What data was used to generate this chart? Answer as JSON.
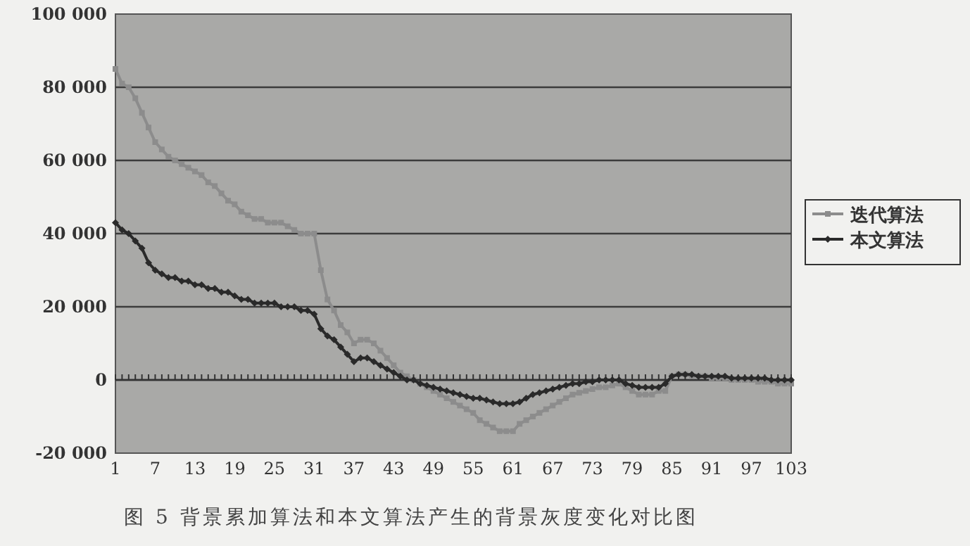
{
  "chart_data": {
    "type": "line",
    "title": "图 5 背景累加算法和本文算法产生的背景灰度变化对比图",
    "categories": [
      "1",
      null,
      null,
      null,
      null,
      null,
      "7",
      null,
      null,
      null,
      null,
      null,
      "13",
      null,
      null,
      null,
      null,
      null,
      "19",
      null,
      null,
      null,
      null,
      null,
      "25",
      null,
      null,
      null,
      null,
      null,
      "31",
      null,
      null,
      null,
      null,
      null,
      "37",
      null,
      null,
      null,
      null,
      null,
      "43",
      null,
      null,
      null,
      null,
      null,
      "49",
      null,
      null,
      null,
      null,
      null,
      "55",
      null,
      null,
      null,
      null,
      null,
      "61",
      null,
      null,
      null,
      null,
      null,
      "67",
      null,
      null,
      null,
      null,
      null,
      "73",
      null,
      null,
      null,
      null,
      null,
      "79",
      null,
      null,
      null,
      null,
      null,
      "85",
      null,
      null,
      null,
      null,
      null,
      "91",
      null,
      null,
      null,
      null,
      null,
      "97",
      null,
      null,
      null,
      null,
      null,
      "103"
    ],
    "series": [
      {
        "name": "迭代算法",
        "color": "#8c8c8c",
        "marker": "square",
        "values": [
          85000,
          81000,
          80000,
          77000,
          73000,
          69000,
          65000,
          63000,
          61000,
          60000,
          59000,
          58000,
          57000,
          56000,
          54000,
          53000,
          51000,
          49000,
          48000,
          46000,
          45000,
          44000,
          44000,
          43000,
          43000,
          43000,
          42000,
          41000,
          40000,
          40000,
          40000,
          30000,
          22000,
          19000,
          15000,
          13000,
          10000,
          11000,
          11000,
          10000,
          8000,
          6000,
          4000,
          2000,
          1000,
          0,
          -1000,
          -2000,
          -3000,
          -4000,
          -5000,
          -6000,
          -7000,
          -8000,
          -9000,
          -11000,
          -12000,
          -13000,
          -14000,
          -14000,
          -14000,
          -12000,
          -11000,
          -10000,
          -9000,
          -8000,
          -7000,
          -6000,
          -5000,
          -4000,
          -3500,
          -3000,
          -2500,
          -2000,
          -2000,
          -1500,
          -1000,
          -2000,
          -3000,
          -4000,
          -4000,
          -4000,
          -3000,
          -3000,
          1000,
          1500,
          1500,
          1000,
          1000,
          1000,
          500,
          500,
          500,
          0,
          0,
          0,
          0,
          -500,
          -500,
          -500,
          -1000,
          -1000,
          -1000
        ]
      },
      {
        "name": "本文算法",
        "color": "#2a2a2a",
        "marker": "diamond",
        "values": [
          43000,
          41000,
          40000,
          38000,
          36000,
          32000,
          30000,
          29000,
          28000,
          28000,
          27000,
          27000,
          26000,
          26000,
          25000,
          25000,
          24000,
          24000,
          23000,
          22000,
          22000,
          21000,
          21000,
          21000,
          21000,
          20000,
          20000,
          20000,
          19000,
          19000,
          18000,
          14000,
          12000,
          11000,
          9000,
          7000,
          5000,
          6000,
          6000,
          5000,
          4000,
          3000,
          2000,
          1000,
          0,
          0,
          -1000,
          -1500,
          -2000,
          -2500,
          -3000,
          -3500,
          -4000,
          -4500,
          -5000,
          -5000,
          -5500,
          -6000,
          -6500,
          -6500,
          -6500,
          -6000,
          -5000,
          -4000,
          -3500,
          -3000,
          -2500,
          -2000,
          -1500,
          -1000,
          -1000,
          -500,
          -500,
          0,
          0,
          0,
          0,
          -1000,
          -1500,
          -2000,
          -2000,
          -2000,
          -2000,
          -1000,
          1000,
          1500,
          1500,
          1500,
          1000,
          1000,
          1000,
          1000,
          1000,
          500,
          500,
          500,
          500,
          500,
          500,
          0,
          0,
          0,
          0
        ]
      }
    ],
    "ylim": [
      -20000,
      100000
    ],
    "yticks": [
      {
        "value": -20000,
        "label": "-20 000"
      },
      0,
      {
        "value": 20000,
        "label": "20 000"
      },
      {
        "value": 40000,
        "label": "40 000"
      },
      {
        "value": 60000,
        "label": "60 000"
      },
      {
        "value": 80000,
        "label": "80 000"
      },
      {
        "value": 100000,
        "label": "100 000"
      }
    ],
    "grid": "y",
    "legend": "right",
    "line_style": "solid"
  }
}
